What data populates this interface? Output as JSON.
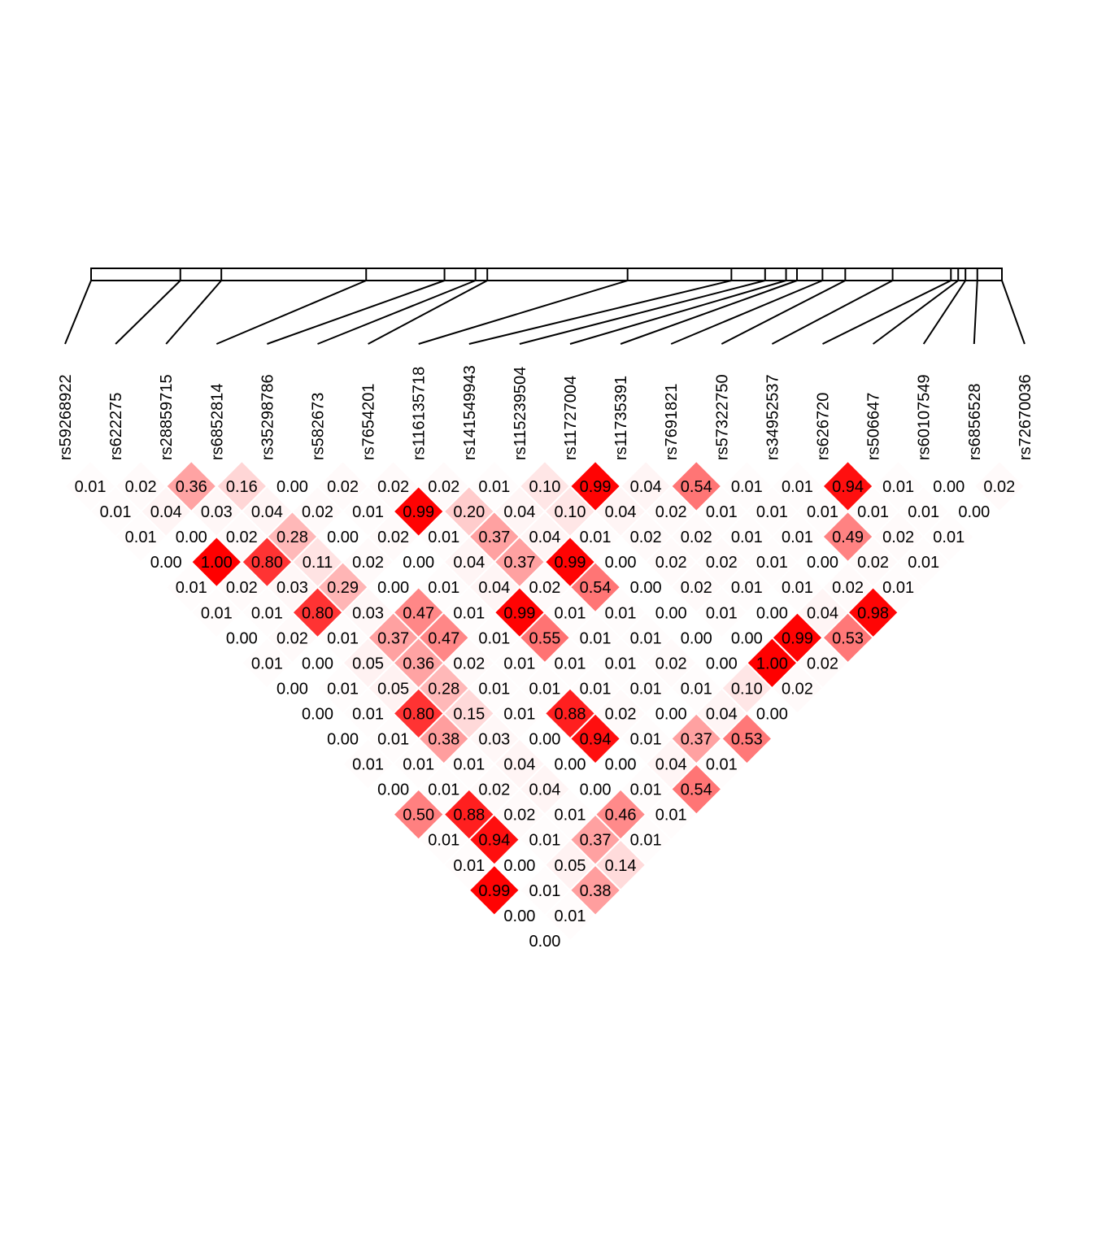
{
  "chart_data": {
    "type": "heatmap",
    "title": "",
    "snps": [
      "rs59268922",
      "rs622275",
      "rs28859715",
      "rs6852814",
      "rs35298786",
      "rs582673",
      "rs7654201",
      "rs116135718",
      "rs141549943",
      "rs115239504",
      "rs11727004",
      "rs11735391",
      "rs7691821",
      "rs57322750",
      "rs34952537",
      "rs626720",
      "rs506647",
      "rs60107549",
      "rs6856528",
      "rs72670036"
    ],
    "relative_positions": [
      0,
      0.098,
      0.143,
      0.302,
      0.388,
      0.422,
      0.435,
      0.589,
      0.703,
      0.74,
      0.763,
      0.775,
      0.803,
      0.828,
      0.88,
      0.944,
      0.952,
      0.96,
      0.973,
      1.0
    ],
    "ld_values": [
      [
        0.01,
        0.02,
        0.36,
        0.16,
        0.0,
        0.02,
        0.02,
        0.02,
        0.01,
        0.1,
        0.99,
        0.04,
        0.54,
        0.01,
        0.01,
        0.94,
        0.01,
        0.0,
        0.02
      ],
      [
        0.01,
        0.04,
        0.03,
        0.04,
        0.02,
        0.01,
        0.99,
        0.2,
        0.04,
        0.1,
        0.04,
        0.02,
        0.01,
        0.01,
        0.01,
        0.01,
        0.01,
        0.0
      ],
      [
        0.01,
        0.0,
        0.02,
        0.28,
        0.0,
        0.02,
        0.01,
        0.37,
        0.04,
        0.01,
        0.02,
        0.02,
        0.01,
        0.01,
        0.49,
        0.02,
        0.01
      ],
      [
        0.0,
        1.0,
        0.8,
        0.11,
        0.02,
        0.0,
        0.04,
        0.37,
        0.99,
        0.0,
        0.02,
        0.02,
        0.01,
        0.0,
        0.02,
        0.01
      ],
      [
        0.01,
        0.02,
        0.03,
        0.29,
        0.0,
        0.01,
        0.04,
        0.02,
        0.54,
        0.0,
        0.02,
        0.01,
        0.01,
        0.02,
        0.01
      ],
      [
        0.01,
        0.01,
        0.8,
        0.03,
        0.47,
        0.01,
        0.99,
        0.01,
        0.01,
        0.0,
        0.01,
        0.0,
        0.04,
        0.98
      ],
      [
        0.0,
        0.02,
        0.01,
        0.37,
        0.47,
        0.01,
        0.55,
        0.01,
        0.01,
        0.0,
        0.0,
        0.99,
        0.53
      ],
      [
        0.01,
        0.0,
        0.05,
        0.36,
        0.02,
        0.01,
        0.01,
        0.01,
        0.02,
        0.0,
        1.0,
        0.02
      ],
      [
        0.0,
        0.01,
        0.05,
        0.28,
        0.01,
        0.01,
        0.01,
        0.01,
        0.01,
        0.1,
        0.02
      ],
      [
        0.0,
        0.01,
        0.8,
        0.15,
        0.01,
        0.88,
        0.02,
        0.0,
        0.04,
        0.0
      ],
      [
        0.0,
        0.01,
        0.38,
        0.03,
        0.0,
        0.94,
        0.01,
        0.37,
        0.53
      ],
      [
        0.01,
        0.01,
        0.01,
        0.04,
        0.0,
        0.0,
        0.04,
        0.01
      ],
      [
        0.0,
        0.01,
        0.02,
        0.04,
        0.0,
        0.01,
        0.54
      ],
      [
        0.5,
        0.88,
        0.02,
        0.01,
        0.46,
        0.01
      ],
      [
        0.01,
        0.94,
        0.01,
        0.37,
        0.01
      ],
      [
        0.01,
        0.0,
        0.05,
        0.14
      ],
      [
        0.99,
        0.01,
        0.38
      ],
      [
        0.0,
        0.01
      ],
      [
        0.0
      ]
    ],
    "color_low": "#ffffff",
    "color_high": "#ff0000",
    "legend": "none",
    "grid": false
  }
}
